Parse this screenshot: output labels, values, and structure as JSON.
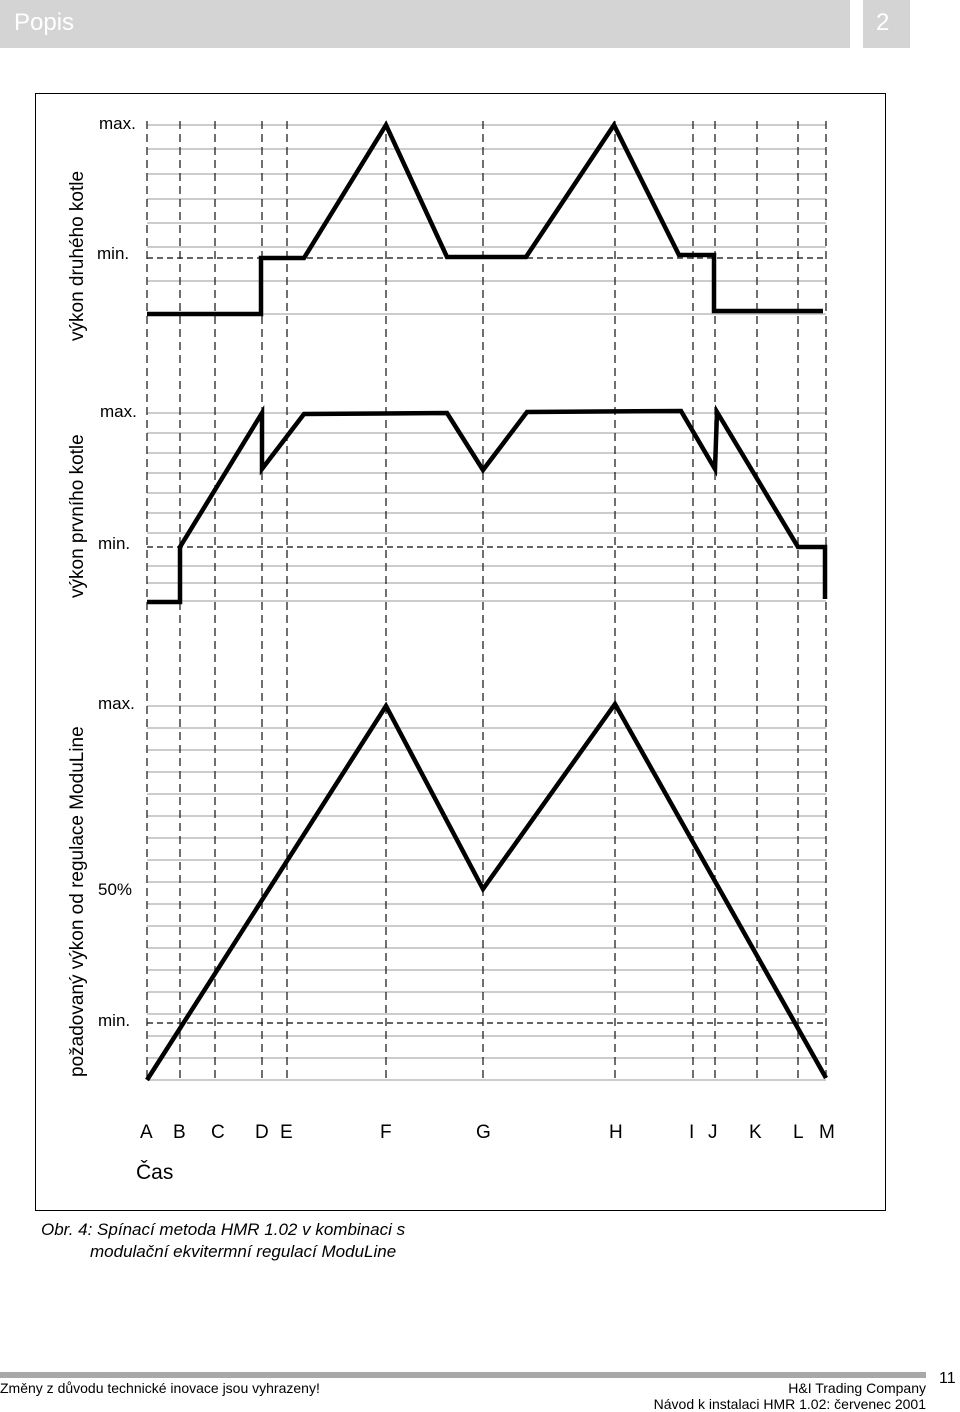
{
  "header": {
    "title": "Popis",
    "section_number": "2"
  },
  "figure": {
    "panels": [
      {
        "id": "second_boiler",
        "ylabel": "výkon druhého kotle",
        "ticks": [
          "max.",
          "min."
        ]
      },
      {
        "id": "first_boiler",
        "ylabel": "výkon prvního kotle",
        "ticks": [
          "max.",
          "min."
        ]
      },
      {
        "id": "moduline_demand",
        "ylabel": "požadovaný výkon od regulace ModuLine",
        "ticks": [
          "max.",
          "50%",
          "min."
        ]
      }
    ],
    "time_labels": [
      "A",
      "B",
      "C",
      "D",
      "E",
      "F",
      "G",
      "H",
      "I",
      "J",
      "K",
      "L",
      "M"
    ],
    "xlabel": "Čas"
  },
  "caption": {
    "line1": "Obr. 4: Spínací metoda HMR 1.02 v kombinaci s",
    "line2": "modulační ekvitermní regulací ModuLine"
  },
  "footer": {
    "left": "Změny z důvodu technické inovace jsou vyhrazeny!",
    "company": "H&I Trading Company",
    "doc": "Návod k instalaci HMR 1.02: červenec 2001",
    "page": "11"
  }
}
